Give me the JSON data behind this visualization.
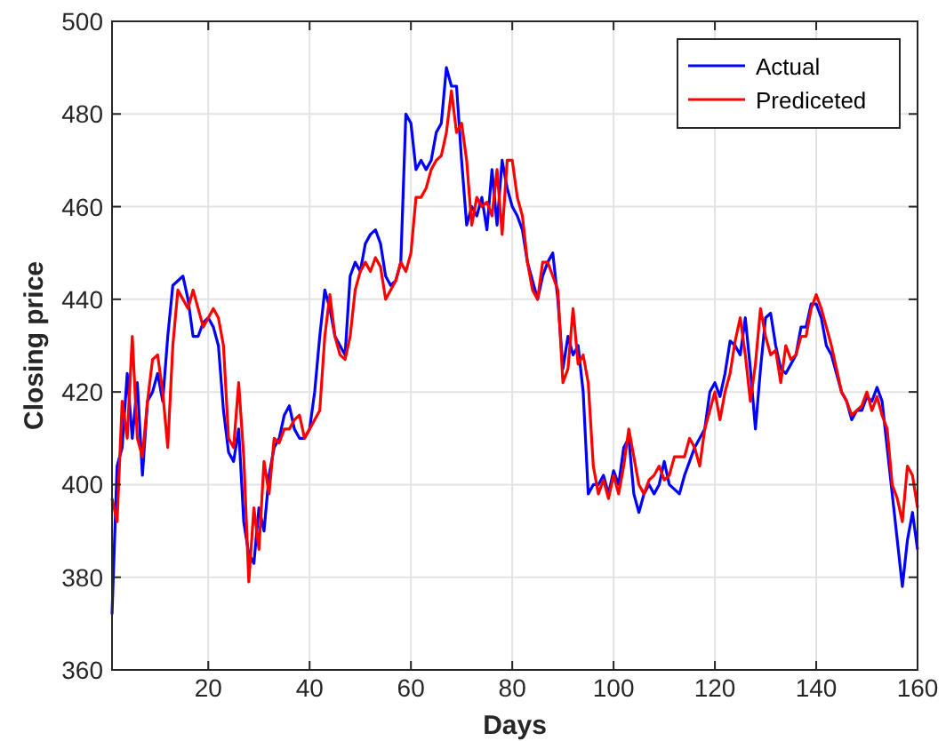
{
  "chart_data": {
    "type": "line",
    "xlabel": "Days",
    "ylabel": "Closing price",
    "x": [
      1,
      2,
      3,
      4,
      5,
      6,
      7,
      8,
      9,
      10,
      11,
      12,
      13,
      14,
      15,
      16,
      17,
      18,
      19,
      20,
      21,
      22,
      23,
      24,
      25,
      26,
      27,
      28,
      29,
      30,
      31,
      32,
      33,
      34,
      35,
      36,
      37,
      38,
      39,
      40,
      41,
      42,
      43,
      44,
      45,
      46,
      47,
      48,
      49,
      50,
      51,
      52,
      53,
      54,
      55,
      56,
      57,
      58,
      59,
      60,
      61,
      62,
      63,
      64,
      65,
      66,
      67,
      68,
      69,
      70,
      71,
      72,
      73,
      74,
      75,
      76,
      77,
      78,
      79,
      80,
      81,
      82,
      83,
      84,
      85,
      86,
      87,
      88,
      89,
      90,
      91,
      92,
      93,
      94,
      95,
      96,
      97,
      98,
      99,
      100,
      101,
      102,
      103,
      104,
      105,
      106,
      107,
      108,
      109,
      110,
      111,
      112,
      113,
      114,
      115,
      116,
      117,
      118,
      119,
      120,
      121,
      122,
      123,
      124,
      125,
      126,
      127,
      128,
      129,
      130,
      131,
      132,
      133,
      134,
      135,
      136,
      137,
      138,
      139,
      140,
      141,
      142,
      143,
      144,
      145,
      146,
      147,
      148,
      149,
      150,
      151,
      152,
      153,
      154,
      155,
      156,
      157,
      158,
      159,
      160
    ],
    "series": [
      {
        "name": "Actual",
        "color": "#0000ff",
        "values": [
          372,
          404,
          408,
          424,
          410,
          422,
          402,
          418,
          420,
          424,
          418,
          432,
          443,
          444,
          445,
          440,
          432,
          432,
          435,
          436,
          434,
          430,
          416,
          407,
          405,
          412,
          392,
          385,
          383,
          395,
          390,
          402,
          408,
          410,
          415,
          417,
          412,
          410,
          410,
          412,
          420,
          432,
          442,
          438,
          432,
          430,
          428,
          445,
          448,
          446,
          452,
          454,
          455,
          452,
          445,
          443,
          444,
          448,
          480,
          478,
          468,
          470,
          468,
          470,
          476,
          478,
          490,
          486,
          486,
          470,
          456,
          460,
          458,
          462,
          455,
          468,
          456,
          470,
          464,
          460,
          458,
          455,
          448,
          444,
          440,
          445,
          448,
          450,
          440,
          425,
          432,
          428,
          430,
          420,
          398,
          400,
          400,
          402,
          398,
          403,
          400,
          408,
          410,
          398,
          394,
          398,
          400,
          398,
          400,
          405,
          400,
          399,
          398,
          402,
          405,
          408,
          410,
          412,
          420,
          422,
          419,
          424,
          431,
          430,
          428,
          436,
          425,
          412,
          425,
          436,
          437,
          430,
          425,
          424,
          426,
          428,
          434,
          434,
          439,
          439,
          436,
          430,
          428,
          424,
          420,
          418,
          414,
          416,
          416,
          419,
          418,
          421,
          418,
          408,
          398,
          388,
          378,
          388,
          394,
          386
        ]
      },
      {
        "name": "Prediceted",
        "color": "#ff0000",
        "values": [
          397,
          392,
          418,
          410,
          432,
          410,
          406,
          418,
          427,
          428,
          420,
          408,
          430,
          442,
          440,
          438,
          442,
          438,
          434,
          436,
          438,
          436,
          430,
          410,
          408,
          422,
          406,
          379,
          395,
          386,
          405,
          398,
          410,
          409,
          412,
          412,
          414,
          415,
          410,
          412,
          414,
          416,
          432,
          441,
          432,
          428,
          427,
          432,
          442,
          446,
          448,
          446,
          449,
          447,
          440,
          442,
          444,
          448,
          446,
          450,
          462,
          462,
          464,
          468,
          470,
          471,
          476,
          485,
          476,
          478,
          470,
          456,
          462,
          460,
          461,
          458,
          468,
          454,
          470,
          470,
          462,
          458,
          448,
          442,
          440,
          448,
          448,
          445,
          442,
          422,
          425,
          438,
          426,
          428,
          422,
          404,
          398,
          401,
          397,
          402,
          398,
          404,
          412,
          406,
          400,
          398,
          401,
          402,
          404,
          401,
          402,
          406,
          406,
          406,
          410,
          408,
          404,
          412,
          416,
          420,
          414,
          420,
          424,
          431,
          436,
          428,
          418,
          426,
          438,
          432,
          428,
          429,
          422,
          430,
          427,
          428,
          432,
          432,
          438,
          441,
          438,
          434,
          430,
          425,
          420,
          418,
          415,
          416,
          417,
          420,
          416,
          419,
          415,
          412,
          400,
          397,
          392,
          404,
          402,
          395
        ]
      }
    ],
    "xlim": [
      1,
      160
    ],
    "xticks": [
      20,
      40,
      60,
      80,
      100,
      120,
      140,
      160
    ],
    "ylim": [
      360,
      500
    ],
    "yticks": [
      360,
      380,
      400,
      420,
      440,
      460,
      480,
      500
    ],
    "grid": true,
    "legend": "top right",
    "line_style": "solid"
  }
}
